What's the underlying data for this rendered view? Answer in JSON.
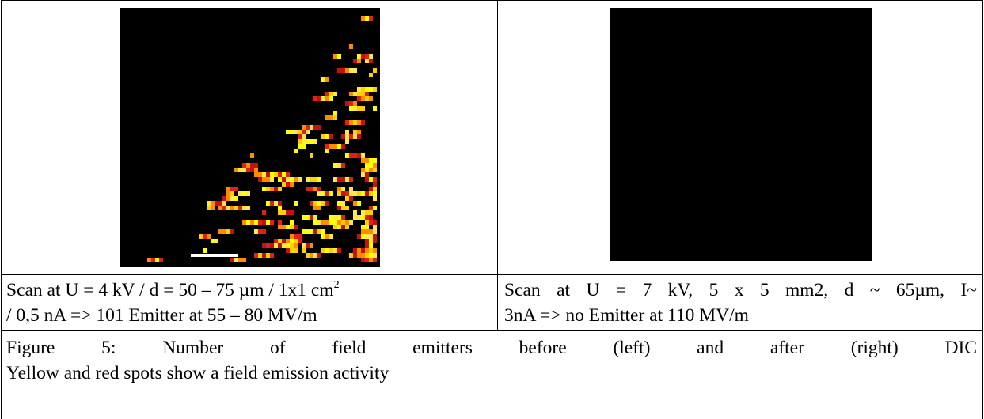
{
  "table": {
    "rows": [
      [
        {
          "caption_line1": "Scan at U = 4 kV / d = 50 – 75 µm / 1x1 cm",
          "caption_sup": "2",
          "caption_line2": "/ 0,5 nA => 101 Emitter at 55 – 80 MV/m"
        },
        {
          "caption_line1": "Scan at U = 7 kV, 5 x 5 mm2, d ~ 65µm, I~",
          "caption_line2": "3nA => no Emitter at 110 MV/m"
        }
      ]
    ],
    "figure_caption": {
      "line1": "Figure 5: Number of field emitters before (left) and after (right) DIC",
      "line2": "Yellow and red spots show a field emission activity"
    }
  }
}
